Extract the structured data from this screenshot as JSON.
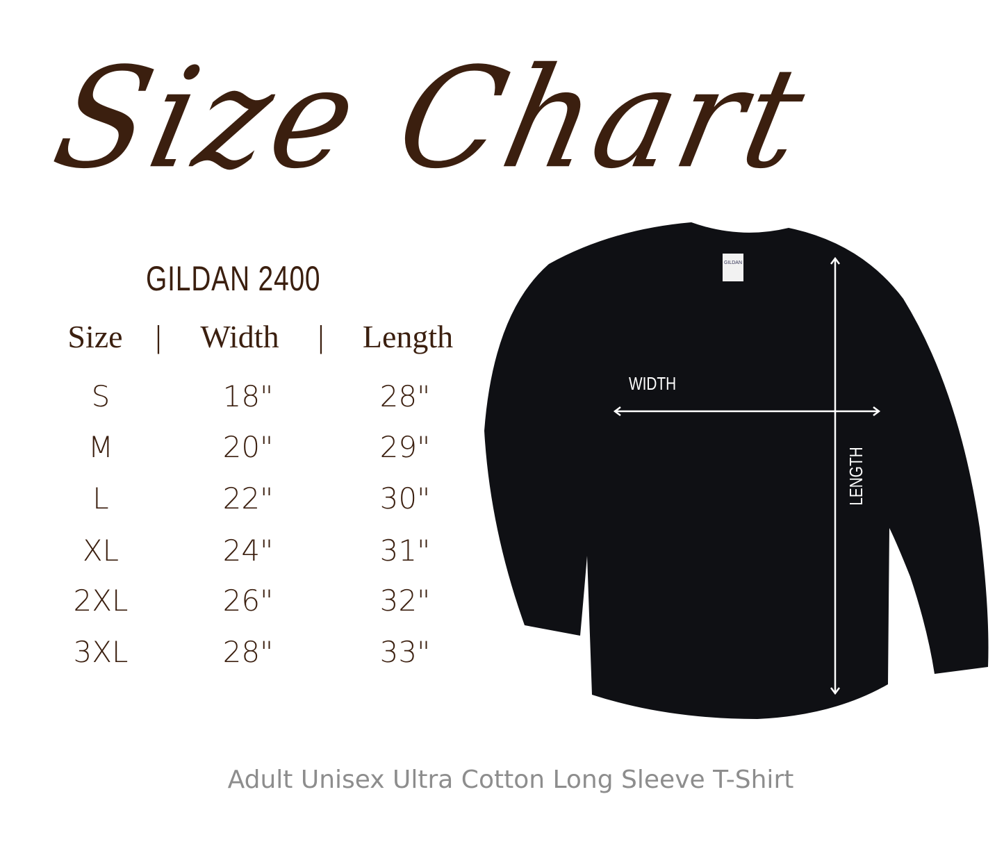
{
  "title": "Size Chart",
  "brand": "GILDAN 2400",
  "table": {
    "headers": [
      "Size",
      "Width",
      "Length"
    ],
    "separator": "|",
    "rows": [
      [
        "S",
        "18\"",
        "28\""
      ],
      [
        "M",
        "20\"",
        "29\""
      ],
      [
        "L",
        "22\"",
        "30\""
      ],
      [
        "XL",
        "24\"",
        "31\""
      ],
      [
        "2XL",
        "26\"",
        "32\""
      ],
      [
        "3XL",
        "28\"",
        "33\""
      ]
    ]
  },
  "diagram": {
    "width_label": "WIDTH",
    "length_label": "LENGTH",
    "tag_text": "GILDAN",
    "shirt_color": "#0f1014"
  },
  "footer": "Adult Unisex Ultra Cotton Long Sleeve T-Shirt",
  "colors": {
    "text": "#3b1f0f",
    "footer": "#8d8d8d"
  }
}
